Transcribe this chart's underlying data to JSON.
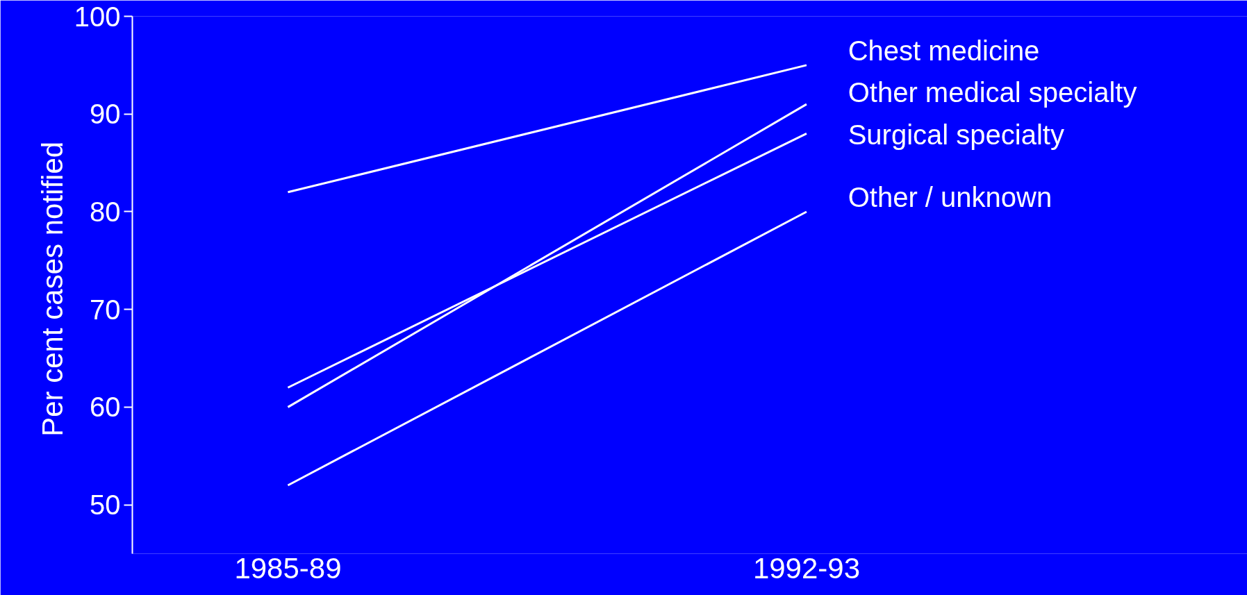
{
  "chart_data": {
    "type": "line",
    "ylabel": "Per  cent cases notified",
    "categories": [
      "1985-89",
      "1992-93"
    ],
    "series": [
      {
        "name": "Chest medicine",
        "color": "#ffffff",
        "values": [
          82,
          95
        ]
      },
      {
        "name": "Other medical specialty",
        "color": "#ffffff",
        "values": [
          60,
          91
        ]
      },
      {
        "name": "Surgical specialty",
        "color": "#ffffff",
        "values": [
          62,
          88
        ]
      },
      {
        "name": "Other / unknown",
        "color": "#ffffff",
        "values": [
          52,
          80
        ]
      }
    ],
    "ylim": [
      45,
      100
    ],
    "yticks": [
      50,
      60,
      70,
      80,
      90,
      100
    ],
    "grid": false,
    "line_style": "solid"
  }
}
